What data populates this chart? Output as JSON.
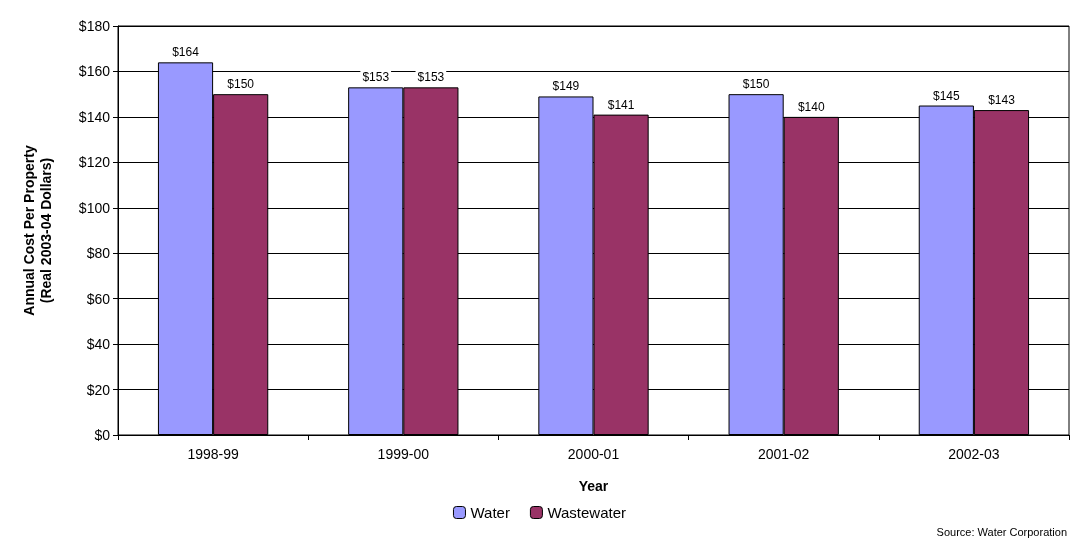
{
  "chart_data": {
    "type": "bar",
    "xlabel": "Year",
    "ylabel": "Annual Cost Per Property\n(Real 2003-04 Dollars)",
    "categories": [
      "1998-99",
      "1999-00",
      "2000-01",
      "2001-02",
      "2002-03"
    ],
    "series": [
      {
        "name": "Water",
        "color": "#9999ff",
        "values": [
          164,
          153,
          149,
          150,
          145
        ],
        "value_labels": [
          "$164",
          "$153",
          "$149",
          "$150",
          "$145"
        ]
      },
      {
        "name": "Wastewater",
        "color": "#993366",
        "values": [
          150,
          153,
          141,
          140,
          143
        ],
        "value_labels": [
          "$150",
          "$153",
          "$141",
          "$140",
          "$143"
        ]
      }
    ],
    "ylim": [
      0,
      180
    ],
    "yticks": [
      {
        "value": 0,
        "label": "$0"
      },
      {
        "value": 20,
        "label": "$20"
      },
      {
        "value": 40,
        "label": "$40"
      },
      {
        "value": 60,
        "label": "$60"
      },
      {
        "value": 80,
        "label": "$80"
      },
      {
        "value": 100,
        "label": "$100"
      },
      {
        "value": 120,
        "label": "$120"
      },
      {
        "value": 140,
        "label": "$140"
      },
      {
        "value": 160,
        "label": "$160"
      },
      {
        "value": 180,
        "label": "$180"
      }
    ],
    "grid": "y",
    "legend": "bottom",
    "annotations": [
      "Source: Water Corporation"
    ]
  }
}
